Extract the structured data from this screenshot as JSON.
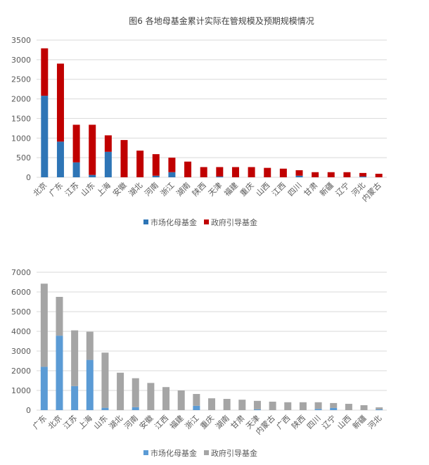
{
  "title": "图6 各地母基金累计实际在管规模及预期规模情况",
  "chart_data": [
    {
      "type": "bar",
      "stacked": true,
      "categories": [
        "北京",
        "广东",
        "江苏",
        "山东",
        "上海",
        "安徽",
        "湖北",
        "河南",
        "浙江",
        "湖南",
        "陕西",
        "天津",
        "福建",
        "重庆",
        "山西",
        "江西",
        "四川",
        "甘肃",
        "新疆",
        "辽宁",
        "河北",
        "内蒙古"
      ],
      "series": [
        {
          "name": "市场化母基金",
          "color": "#2e75b6",
          "values": [
            2080,
            910,
            380,
            60,
            650,
            0,
            0,
            40,
            130,
            0,
            0,
            20,
            0,
            0,
            0,
            0,
            40,
            0,
            0,
            0,
            20,
            0
          ]
        },
        {
          "name": "政府引导基金",
          "color": "#c00000",
          "values": [
            1210,
            1990,
            960,
            1280,
            420,
            950,
            680,
            550,
            370,
            400,
            260,
            240,
            260,
            260,
            240,
            220,
            140,
            130,
            130,
            130,
            90,
            90
          ]
        }
      ],
      "ylim": [
        0,
        3500
      ],
      "yticks": [
        0,
        500,
        1000,
        1500,
        2000,
        2500,
        3000,
        3500
      ],
      "grid": true,
      "legend": "bottom"
    },
    {
      "type": "bar",
      "stacked": true,
      "categories": [
        "广东",
        "北京",
        "江苏",
        "上海",
        "山东",
        "湖北",
        "河南",
        "安徽",
        "江西",
        "福建",
        "浙江",
        "重庆",
        "湖南",
        "甘肃",
        "天津",
        "内蒙古",
        "广西",
        "陕西",
        "四川",
        "辽宁",
        "山西",
        "新疆",
        "河北"
      ],
      "series": [
        {
          "name": "市场化母基金",
          "color": "#5b9bd5",
          "values": [
            2200,
            3780,
            1220,
            2550,
            120,
            0,
            150,
            0,
            0,
            0,
            220,
            0,
            0,
            0,
            40,
            0,
            0,
            0,
            60,
            110,
            0,
            0,
            40
          ]
        },
        {
          "name": "政府引导基金",
          "color": "#a5a5a5",
          "values": [
            4220,
            1970,
            2830,
            1430,
            2800,
            1900,
            1470,
            1380,
            1170,
            1000,
            600,
            600,
            570,
            530,
            430,
            430,
            400,
            400,
            340,
            250,
            320,
            250,
            100
          ]
        }
      ],
      "ylim": [
        0,
        7000
      ],
      "yticks": [
        0,
        1000,
        2000,
        3000,
        4000,
        5000,
        6000,
        7000
      ],
      "grid": true,
      "legend": "bottom"
    }
  ]
}
